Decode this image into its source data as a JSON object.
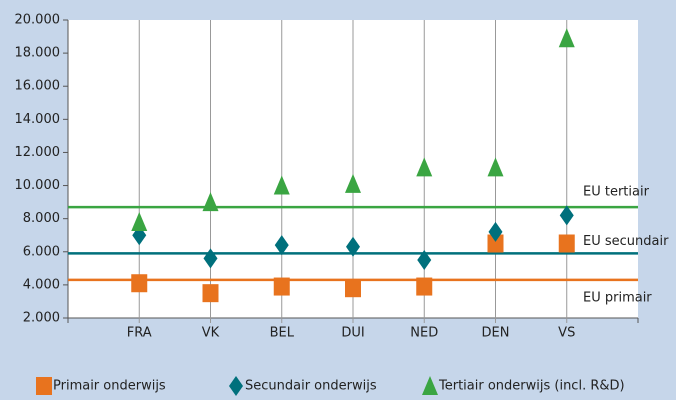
{
  "chart_data": {
    "type": "scatter",
    "categories": [
      "FRA",
      "VK",
      "BEL",
      "DUI",
      "NED",
      "DEN",
      "VS"
    ],
    "series": [
      {
        "name": "Primair onderwijs",
        "color": "#e8731e",
        "marker": "square",
        "values": [
          4100,
          3500,
          3900,
          3800,
          3900,
          6500,
          6500
        ]
      },
      {
        "name": "Secundair onderwijs",
        "color": "#00707c",
        "marker": "diamond",
        "values": [
          7000,
          5600,
          6400,
          6300,
          5500,
          7200,
          8200
        ]
      },
      {
        "name": "Tertiair onderwijs (incl. R&D)",
        "color": "#3aa542",
        "marker": "triangle",
        "values": [
          7800,
          9000,
          10000,
          10100,
          11100,
          11100,
          18900
        ]
      }
    ],
    "reference_lines": [
      {
        "label": "EU tertiair",
        "value": 8700,
        "color": "#3aa542"
      },
      {
        "label": "EU secundair",
        "value": 5900,
        "color": "#00707c"
      },
      {
        "label": "EU primair",
        "value": 4300,
        "color": "#e8731e"
      }
    ],
    "ylim": [
      2000,
      20000
    ],
    "yticks": [
      {
        "value": 2000,
        "label": "2.000"
      },
      {
        "value": 4000,
        "label": "4.000"
      },
      {
        "value": 6000,
        "label": "6.000"
      },
      {
        "value": 8000,
        "label": "8.000"
      },
      {
        "value": 10000,
        "label": "10.000"
      },
      {
        "value": 12000,
        "label": "12.000"
      },
      {
        "value": 14000,
        "label": "14.000"
      },
      {
        "value": 16000,
        "label": "16.000"
      },
      {
        "value": 18000,
        "label": "18.000"
      },
      {
        "value": 20000,
        "label": "20.000"
      }
    ],
    "grid": true,
    "legend": "bottom"
  }
}
